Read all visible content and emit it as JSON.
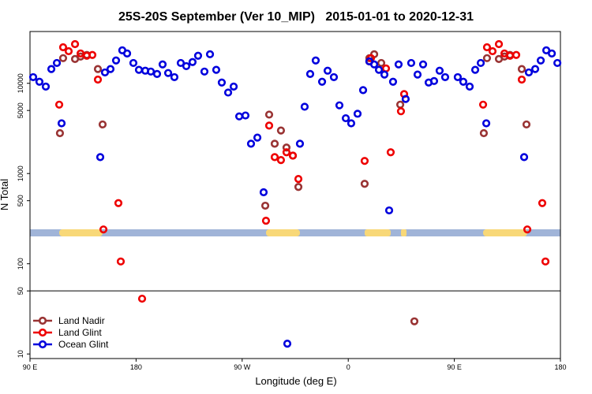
{
  "chart_data": {
    "type": "scatter",
    "title": "25S-20S September (Ver 10_MIP)   2015-01-01 to 2020-12-31",
    "xlabel": "Longitude (deg E)",
    "ylabel": "N Total",
    "log_y": true,
    "legend": "lower left",
    "xlim": [
      90,
      540
    ],
    "xticks": [
      {
        "value": 90,
        "label": "90 E"
      },
      {
        "value": 180,
        "label": "180"
      },
      {
        "value": 270,
        "label": "90 W"
      },
      {
        "value": 360,
        "label": "0"
      },
      {
        "value": 450,
        "label": "90 E"
      },
      {
        "value": 540,
        "label": "180"
      }
    ],
    "ylim": [
      8.9,
      37500
    ],
    "yticks": [
      10,
      50,
      100,
      500,
      1000,
      5000,
      10000
    ],
    "hline": 50,
    "series": [
      {
        "name": "Land Nadir",
        "color": "#993333",
        "x": [
          115.4,
          118.1,
          128.2,
          132.9,
          138.2,
          147.6,
          151.6,
          289.6,
          292.9,
          297.6,
          302.9,
          307.6,
          313.0,
          317.7,
          373.9,
          377.9,
          382.0,
          388.0,
          404.1,
          416.1,
          475.0,
          477.7,
          487.8,
          492.5,
          497.2,
          507.2,
          511.2
        ],
        "values": [
          2800,
          19000,
          18600,
          19800,
          20600,
          14400,
          3500,
          440,
          4500,
          2140,
          3000,
          1940,
          1580,
          710,
          770,
          19000,
          21000,
          16800,
          5800,
          23,
          2800,
          19000,
          18600,
          19800,
          20600,
          14400,
          3500
        ]
      },
      {
        "name": "Land Glint",
        "color": "#ee0000",
        "x": [
          114.8,
          118.1,
          122.8,
          128.2,
          132.9,
          138.2,
          142.9,
          147.6,
          152.3,
          165.0,
          167.0,
          185.1,
          290.2,
          292.9,
          297.6,
          302.9,
          307.6,
          313.0,
          317.7,
          373.9,
          377.9,
          379.3,
          392.0,
          396.0,
          404.7,
          407.4,
          474.4,
          477.7,
          482.4,
          487.8,
          492.5,
          497.2,
          502.5,
          507.2,
          511.9,
          524.6,
          527.3
        ],
        "values": [
          5800,
          25100,
          22700,
          27200,
          21400,
          20200,
          20600,
          11000,
          240,
          470,
          106,
          41,
          300,
          3400,
          1520,
          1410,
          1720,
          1580,
          870,
          1380,
          17500,
          19000,
          14600,
          1720,
          4900,
          7600,
          5800,
          25100,
          22700,
          27200,
          21400,
          20200,
          20600,
          11000,
          240,
          470,
          106
        ]
      },
      {
        "name": "Ocean Glint",
        "color": "#0000dd",
        "x": [
          92.7,
          98.0,
          103.4,
          108.1,
          112.8,
          116.8,
          149.6,
          153.6,
          158.3,
          163.0,
          168.3,
          172.4,
          177.7,
          182.4,
          187.8,
          192.5,
          197.8,
          202.5,
          207.2,
          212.5,
          217.9,
          222.6,
          227.9,
          232.6,
          238.0,
          242.7,
          248.0,
          252.7,
          258.1,
          262.8,
          267.5,
          272.8,
          277.5,
          282.9,
          288.2,
          308.3,
          319.0,
          323.0,
          327.7,
          332.4,
          337.8,
          342.5,
          347.8,
          352.5,
          357.9,
          362.5,
          367.9,
          372.6,
          377.9,
          382.0,
          386.0,
          390.7,
          394.7,
          398.0,
          402.7,
          408.7,
          413.4,
          418.8,
          423.5,
          428.2,
          432.8,
          437.5,
          442.2,
          452.9,
          457.6,
          463.0,
          467.7,
          472.4,
          477.1,
          509.2,
          513.2,
          518.6,
          523.3,
          528.0,
          532.7,
          537.4
        ],
        "values": [
          11700,
          10400,
          9200,
          14400,
          16800,
          3600,
          1520,
          13200,
          14400,
          17900,
          23200,
          21400,
          16800,
          14100,
          13800,
          13500,
          12700,
          16200,
          13000,
          11700,
          16800,
          15500,
          17200,
          20200,
          13500,
          21000,
          14100,
          10200,
          7900,
          9200,
          4300,
          4400,
          2140,
          2500,
          620,
          13,
          2140,
          5500,
          12700,
          17900,
          10400,
          13800,
          11700,
          5700,
          4100,
          3600,
          4600,
          8400,
          17500,
          16200,
          14100,
          12500,
          390,
          10400,
          16200,
          6700,
          16800,
          12500,
          16200,
          10200,
          10600,
          13800,
          11700,
          11700,
          10400,
          9200,
          14100,
          16800,
          3600,
          1520,
          13200,
          14400,
          17900,
          23200,
          21400,
          16800
        ]
      }
    ]
  }
}
